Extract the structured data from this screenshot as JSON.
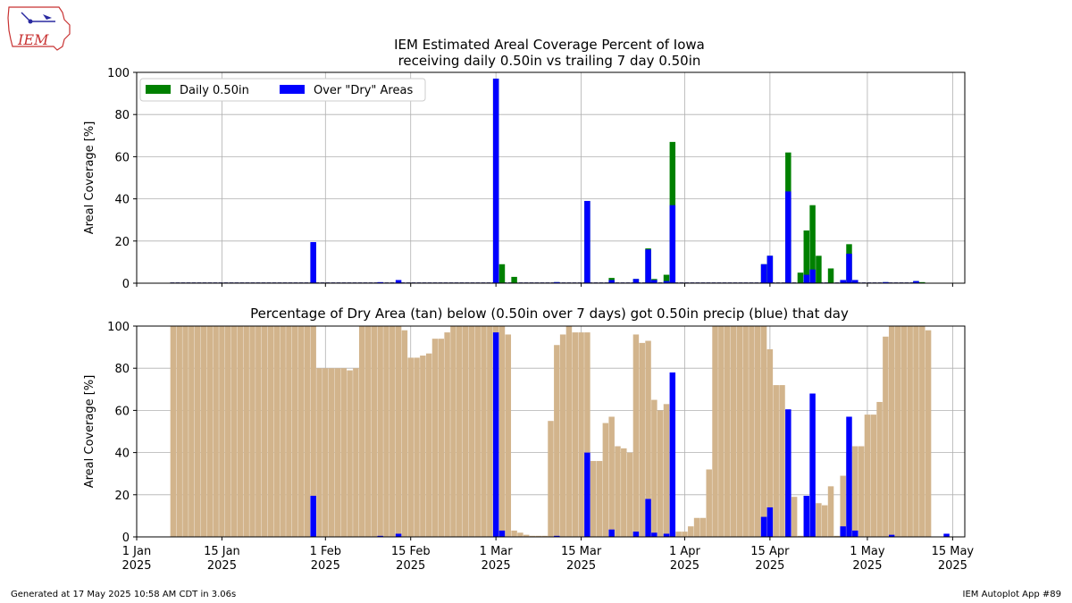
{
  "logo_text": "IEM",
  "footer": {
    "left": "Generated at 17 May 2025 10:58 AM CDT in 3.06s",
    "right": "IEM Autoplot App #89"
  },
  "colors": {
    "daily": "#008000",
    "dry_hit": "#0000ff",
    "dry_area": "#d2b48c",
    "grid": "#b0b0b0"
  },
  "chart_data": [
    {
      "type": "bar",
      "title": "IEM Estimated Areal Coverage Percent of Iowa\nreceiving daily 0.50in vs trailing 7 day 0.50in",
      "ylabel": "Areal Coverage [%]",
      "ylim": [
        0,
        100
      ],
      "yticks": [
        0,
        20,
        40,
        60,
        80,
        100
      ],
      "xlim_days": [
        0,
        136
      ],
      "legend": {
        "position": "top-left",
        "entries": [
          "Daily 0.50in",
          "Over \"Dry\" Areas"
        ]
      },
      "grid": true,
      "series": [
        {
          "name": "Daily 0.50in",
          "color": "#008000",
          "points": [
            [
              29,
              19
            ],
            [
              59,
              97
            ],
            [
              60,
              9
            ],
            [
              62,
              3
            ],
            [
              69,
              0.5
            ],
            [
              74,
              39
            ],
            [
              78,
              2.5
            ],
            [
              82,
              2
            ],
            [
              84,
              16.5
            ],
            [
              85,
              2
            ],
            [
              87,
              4
            ],
            [
              88,
              67
            ],
            [
              103,
              9
            ],
            [
              104,
              13
            ],
            [
              107,
              62
            ],
            [
              109,
              5
            ],
            [
              110,
              25
            ],
            [
              111,
              37
            ],
            [
              112,
              13
            ],
            [
              114,
              7
            ],
            [
              116,
              1.5
            ],
            [
              117,
              18.5
            ],
            [
              118,
              1.5
            ],
            [
              123,
              0.5
            ],
            [
              128,
              1
            ],
            [
              129,
              0.5
            ]
          ]
        },
        {
          "name": "Over \"Dry\" Areas",
          "color": "#0000ff",
          "points": [
            [
              29,
              19.5
            ],
            [
              40,
              0.5
            ],
            [
              43,
              1.5
            ],
            [
              59,
              97
            ],
            [
              69,
              0.5
            ],
            [
              74,
              39
            ],
            [
              78,
              1.5
            ],
            [
              82,
              2
            ],
            [
              84,
              16
            ],
            [
              85,
              1.5
            ],
            [
              87,
              1
            ],
            [
              88,
              37
            ],
            [
              103,
              9
            ],
            [
              104,
              13
            ],
            [
              107,
              43.5
            ],
            [
              110,
              4
            ],
            [
              111,
              6.5
            ],
            [
              116,
              1.5
            ],
            [
              117,
              14
            ],
            [
              118,
              1.5
            ],
            [
              123,
              0.5
            ],
            [
              128,
              1
            ]
          ]
        }
      ]
    },
    {
      "type": "bar",
      "title": "Percentage of Dry Area (tan) below (0.50in over 7 days) got 0.50in precip (blue) that day",
      "ylabel": "Areal Coverage [%]",
      "ylim": [
        0,
        100
      ],
      "yticks": [
        0,
        20,
        40,
        60,
        80,
        100
      ],
      "xlim_days": [
        0,
        136
      ],
      "x_tick_labels": [
        [
          "1 Jan",
          "2025"
        ],
        [
          "15 Jan",
          "2025"
        ],
        [
          "1 Feb",
          "2025"
        ],
        [
          "15 Feb",
          "2025"
        ],
        [
          "1 Mar",
          "2025"
        ],
        [
          "15 Mar",
          "2025"
        ],
        [
          "1 Apr",
          "2025"
        ],
        [
          "15 Apr",
          "2025"
        ],
        [
          "1 May",
          "2025"
        ],
        [
          "15 May",
          "2025"
        ]
      ],
      "x_tick_days": [
        0,
        14,
        31,
        45,
        59,
        73,
        90,
        104,
        120,
        134
      ],
      "grid": true,
      "series": [
        {
          "name": "Dry Area",
          "color": "#d2b48c",
          "start_day": 6,
          "values": [
            100,
            100,
            100,
            100,
            100,
            100,
            100,
            100,
            100,
            100,
            100,
            100,
            100,
            100,
            100,
            100,
            100,
            100,
            100,
            100,
            100,
            100,
            100,
            100,
            80,
            80,
            80,
            80,
            80,
            79,
            80,
            100,
            100,
            100,
            100,
            100,
            100,
            100,
            98,
            85,
            85,
            86,
            87,
            94,
            94,
            97,
            100,
            100,
            100,
            100,
            100,
            100,
            100,
            100,
            100,
            96,
            3,
            2,
            1,
            0.5,
            0.5,
            0.5,
            55,
            91,
            96,
            100,
            97,
            97,
            97,
            36,
            36,
            54,
            57,
            43,
            42,
            40,
            96,
            92,
            93,
            65,
            60,
            63,
            1.5,
            2.5,
            2.5,
            5,
            9,
            9,
            32,
            100,
            100,
            100,
            100,
            100,
            100,
            100,
            100,
            100,
            89,
            72,
            72,
            22,
            19,
            0.5,
            0.5,
            1.5,
            16,
            15,
            24,
            0.5,
            29,
            40,
            43,
            43,
            58,
            58,
            64,
            95,
            100,
            100,
            100,
            100,
            100,
            100,
            98
          ]
        },
        {
          "name": "Dry Hit",
          "color": "#0000ff",
          "points": [
            [
              29,
              19.5
            ],
            [
              40,
              0.5
            ],
            [
              43,
              1.5
            ],
            [
              59,
              97
            ],
            [
              60,
              3
            ],
            [
              69,
              0.5
            ],
            [
              74,
              40
            ],
            [
              78,
              3.5
            ],
            [
              82,
              2.5
            ],
            [
              84,
              18
            ],
            [
              85,
              2
            ],
            [
              87,
              1.5
            ],
            [
              88,
              78
            ],
            [
              103,
              9.5
            ],
            [
              104,
              14
            ],
            [
              107,
              60.5
            ],
            [
              110,
              19.5
            ],
            [
              111,
              68
            ],
            [
              116,
              5
            ],
            [
              117,
              57
            ],
            [
              118,
              3
            ],
            [
              124,
              1
            ],
            [
              133,
              1.5
            ]
          ]
        }
      ]
    }
  ]
}
